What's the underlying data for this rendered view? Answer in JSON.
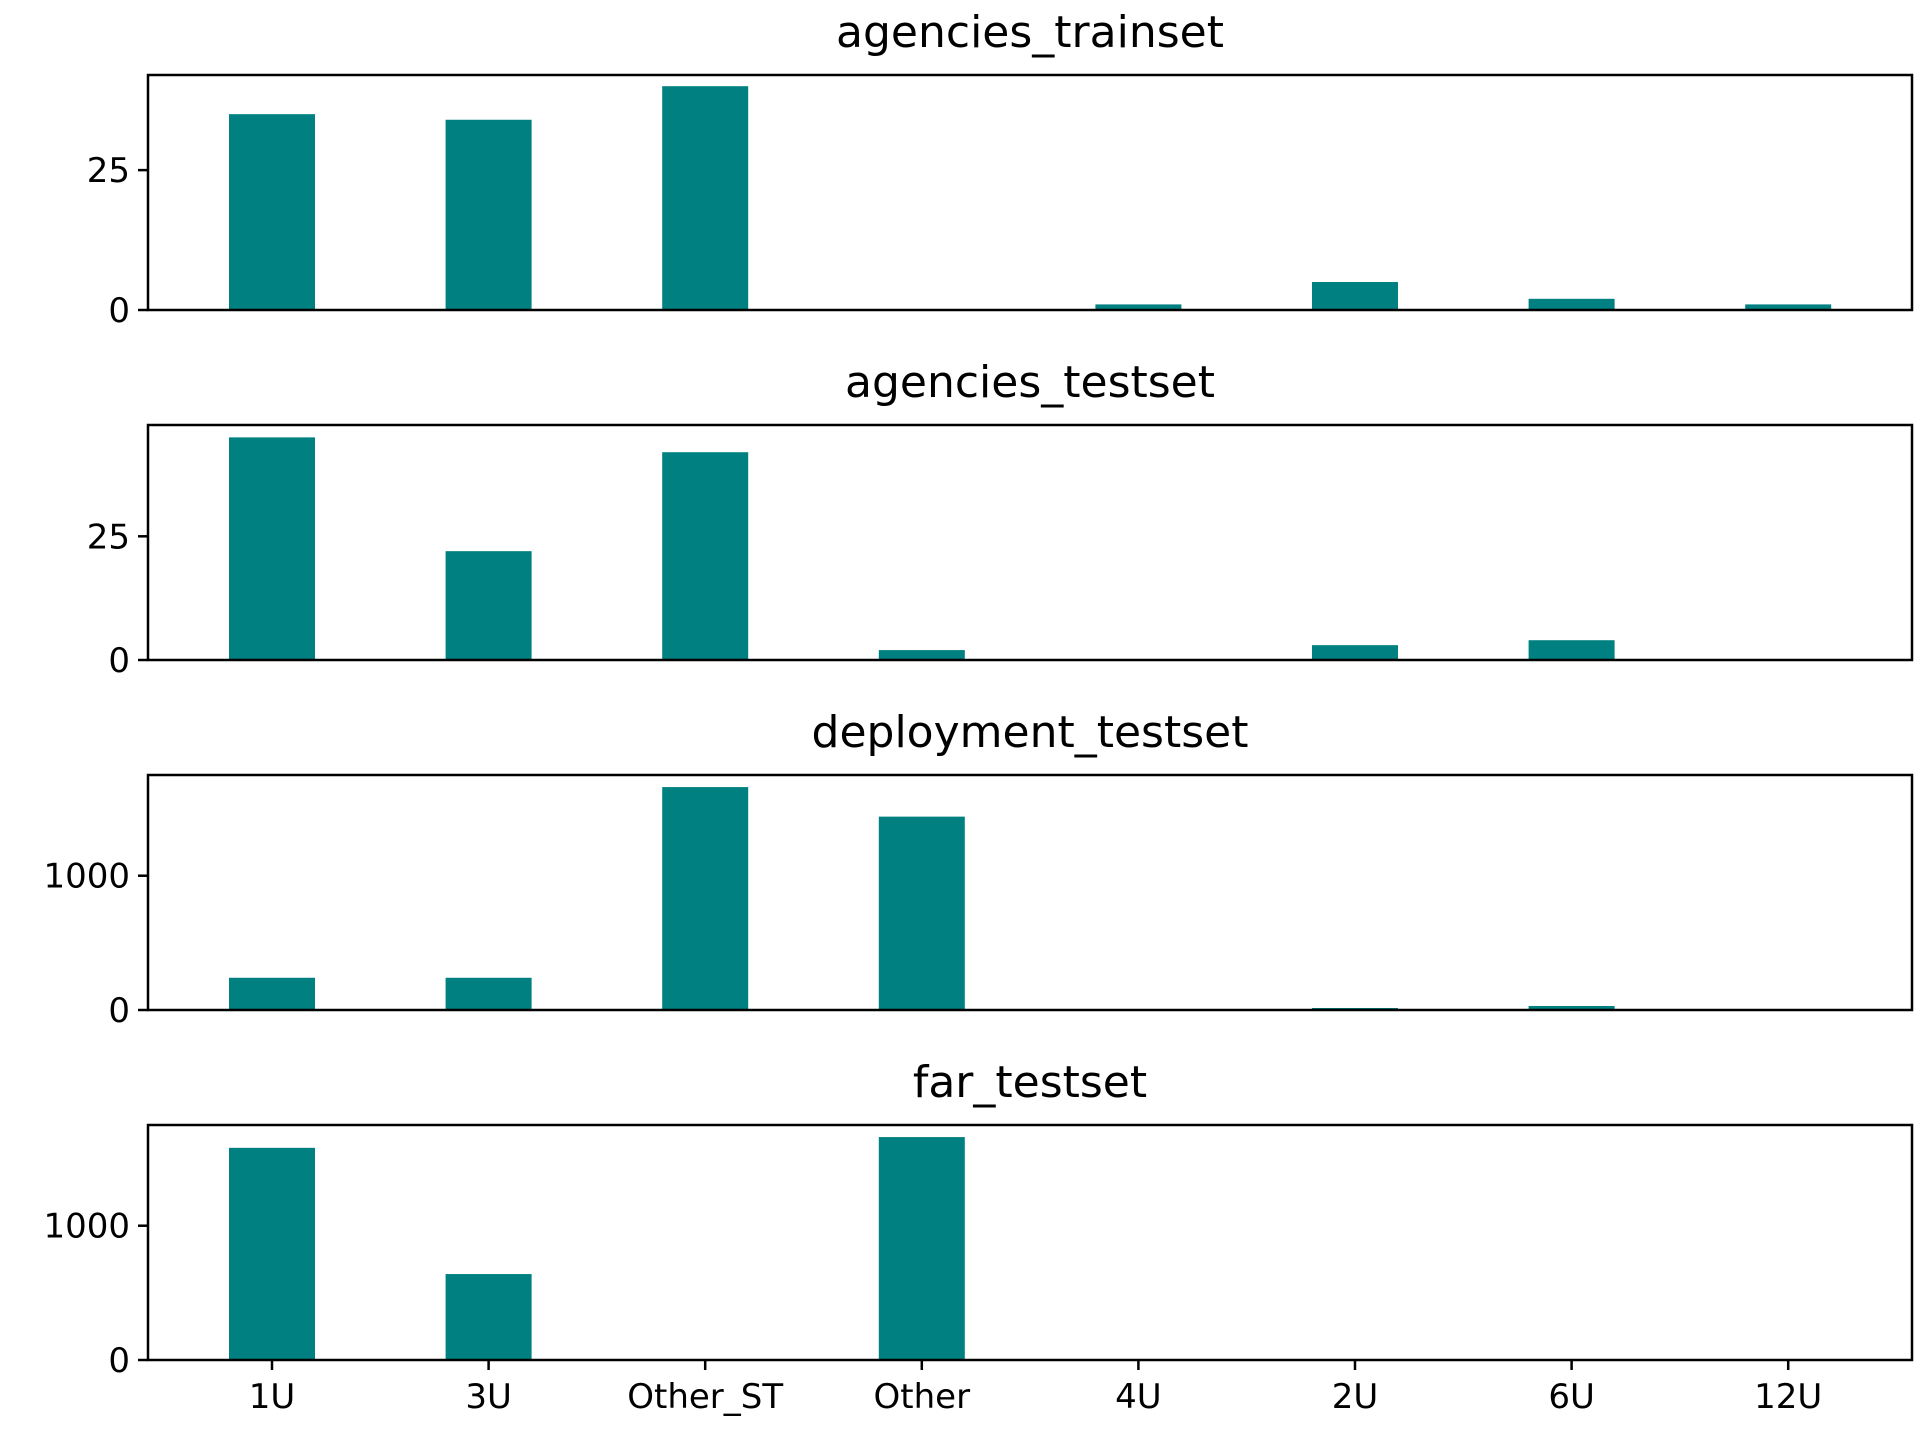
{
  "chart_data": {
    "type": "bar",
    "color": "#008080",
    "categories": [
      "1U",
      "3U",
      "Other_ST",
      "Other",
      "4U",
      "2U",
      "6U",
      "12U"
    ],
    "grid": false,
    "xlabel": "",
    "ylabel": "",
    "panels": [
      {
        "title": "agencies_trainset",
        "values": [
          35,
          34,
          40,
          0,
          1,
          5,
          2,
          1
        ],
        "ylim": [
          0,
          42
        ],
        "yticks": [
          0,
          25
        ],
        "ytick_labels": [
          "0",
          "25"
        ]
      },
      {
        "title": "agencies_testset",
        "values": [
          45,
          22,
          42,
          2,
          0,
          3,
          4,
          0
        ],
        "ylim": [
          0,
          47.5
        ],
        "yticks": [
          0,
          25
        ],
        "ytick_labels": [
          "0",
          "25"
        ]
      },
      {
        "title": "deployment_testset",
        "values": [
          240,
          240,
          1660,
          1440,
          0,
          15,
          30,
          0
        ],
        "ylim": [
          0,
          1750
        ],
        "yticks": [
          0,
          1000
        ],
        "ytick_labels": [
          "0",
          "1000"
        ]
      },
      {
        "title": "far_testset",
        "values": [
          1580,
          640,
          0,
          1660,
          0,
          0,
          0,
          0
        ],
        "ylim": [
          0,
          1750
        ],
        "yticks": [
          0,
          1000
        ],
        "ytick_labels": [
          "0",
          "1000"
        ]
      }
    ]
  }
}
